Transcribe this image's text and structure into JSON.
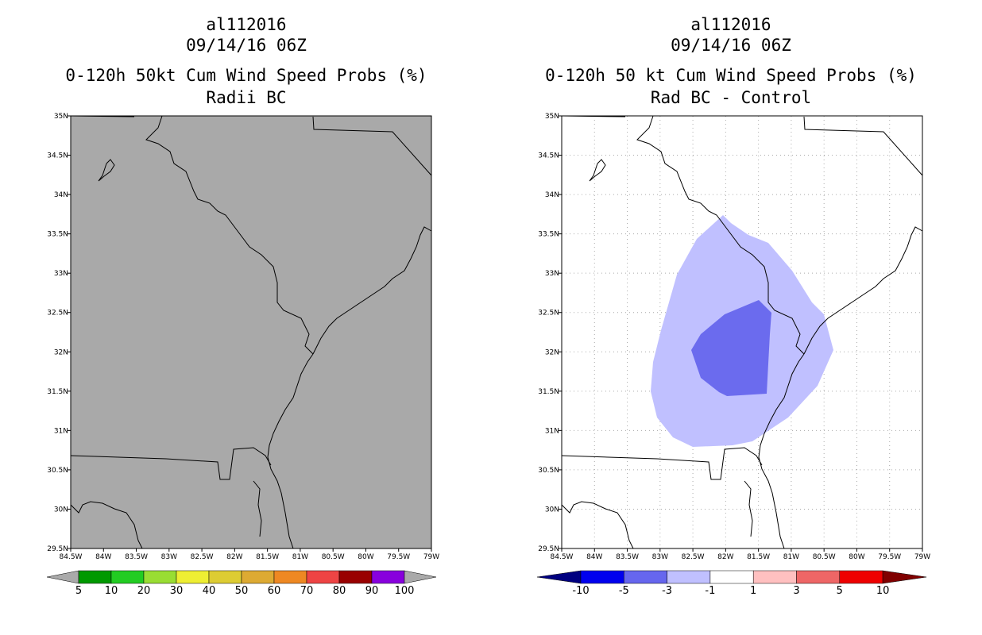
{
  "left_panel": {
    "storm_id": "al112016",
    "datetime": "09/14/16 06Z",
    "title": "0-120h 50kt Cum Wind Speed Probs (%)",
    "subtitle": "Radii BC",
    "fill_color": "#a9a9a9",
    "colorbar": {
      "colors": [
        "#009900",
        "#22cc22",
        "#99dd33",
        "#eeee33",
        "#ddcc33",
        "#ddaa33",
        "#ee8822",
        "#ee4444",
        "#990000",
        "#8800dd"
      ],
      "end_colors": [
        "#aaaaaa",
        "#aaaaaa"
      ],
      "labels": [
        "5",
        "10",
        "20",
        "30",
        "40",
        "50",
        "60",
        "70",
        "80",
        "90",
        "100"
      ]
    }
  },
  "right_panel": {
    "storm_id": "al112016",
    "datetime": "09/14/16 06Z",
    "title": "0-120h 50 kt Cum Wind Speed Probs (%)",
    "subtitle": "Rad BC - Control",
    "colorbar": {
      "colors": [
        "#0000ee",
        "#6666ee",
        "#c0c0ff",
        "#ffffff",
        "#ffc0c0",
        "#ee6666",
        "#ee0000"
      ],
      "end_colors": [
        "#000080",
        "#800000"
      ],
      "labels": [
        "-10",
        "-5",
        "-3",
        "-1",
        "1",
        "3",
        "5",
        "10"
      ]
    }
  },
  "axes": {
    "x_ticks": [
      "84.5W",
      "84W",
      "83.5W",
      "83W",
      "82.5W",
      "82W",
      "81.5W",
      "81W",
      "80.5W",
      "80W",
      "79.5W",
      "79W"
    ],
    "y_ticks": [
      "35N",
      "34.5N",
      "34N",
      "33.5N",
      "33N",
      "32.5N",
      "32N",
      "31.5N",
      "31N",
      "30.5N",
      "30N",
      "29.5N"
    ]
  },
  "map_extent": {
    "lon_range": [
      -84.5,
      -79.0
    ],
    "lat_range": [
      29.5,
      35.0
    ]
  }
}
